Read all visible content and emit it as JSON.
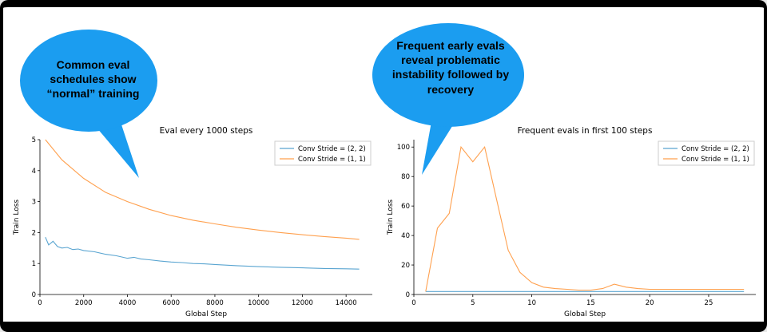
{
  "colors": {
    "bubble": "#1b9df0",
    "stride22_blue": "#5aa5d1",
    "stride11_orange": "#ffa04e",
    "legend_border": "#cccccc",
    "axis": "#000000"
  },
  "bubbles": {
    "left": {
      "text": "Common eval\nschedules show\n“normal” training"
    },
    "right": {
      "text": "Frequent early evals\nreveal problematic\ninstability followed by\nrecovery"
    }
  },
  "chart_data": [
    {
      "type": "line",
      "title": "Eval every 1000 steps",
      "xlabel": "Global Step",
      "ylabel": "Train Loss",
      "xlim": [
        0,
        15200
      ],
      "ylim": [
        0,
        5
      ],
      "xticks": [
        0,
        2000,
        4000,
        6000,
        8000,
        10000,
        12000,
        14000
      ],
      "yticks": [
        0,
        1,
        2,
        3,
        4,
        5
      ],
      "grid": false,
      "legend_position": "upper right",
      "series": [
        {
          "name": "Conv Stride =  (2, 2)",
          "color": "#5aa5d1",
          "x": [
            250,
            400,
            600,
            800,
            1000,
            1250,
            1500,
            1750,
            2000,
            2500,
            3000,
            3500,
            4000,
            4300,
            4600,
            5000,
            5500,
            6000,
            6500,
            7000,
            7500,
            8000,
            9000,
            10000,
            11000,
            12000,
            13000,
            14000,
            14600
          ],
          "y": [
            1.85,
            1.6,
            1.72,
            1.55,
            1.5,
            1.52,
            1.45,
            1.47,
            1.42,
            1.38,
            1.3,
            1.25,
            1.17,
            1.2,
            1.15,
            1.12,
            1.08,
            1.05,
            1.03,
            1.0,
            0.99,
            0.97,
            0.93,
            0.9,
            0.88,
            0.86,
            0.84,
            0.83,
            0.82
          ]
        },
        {
          "name": "Conv Stride =  (1, 1)",
          "color": "#ffa04e",
          "x": [
            250,
            1000,
            2000,
            3000,
            4000,
            5000,
            6000,
            7000,
            8000,
            9000,
            10000,
            11000,
            12000,
            13000,
            14000,
            14600
          ],
          "y": [
            5.0,
            4.35,
            3.75,
            3.3,
            3.0,
            2.75,
            2.55,
            2.4,
            2.28,
            2.17,
            2.08,
            2.0,
            1.93,
            1.87,
            1.82,
            1.78
          ]
        }
      ]
    },
    {
      "type": "line",
      "title": "Frequent evals in first 100 steps",
      "xlabel": "Global Step",
      "ylabel": "Train Loss",
      "xlim": [
        0,
        29
      ],
      "ylim": [
        0,
        105
      ],
      "xticks": [
        0,
        5,
        10,
        15,
        20,
        25
      ],
      "yticks": [
        0,
        20,
        40,
        60,
        80,
        100
      ],
      "grid": false,
      "legend_position": "upper right",
      "series": [
        {
          "name": "Conv Stride =  (2, 2)",
          "color": "#5aa5d1",
          "x": [
            1,
            5,
            10,
            15,
            20,
            25,
            28
          ],
          "y": [
            2,
            2,
            2,
            2,
            2,
            2,
            2
          ]
        },
        {
          "name": "Conv Stride =  (1, 1)",
          "color": "#ffa04e",
          "x": [
            1,
            2,
            3,
            4,
            5,
            6,
            7,
            8,
            9,
            10,
            11,
            12,
            13,
            14,
            15,
            16,
            17,
            18,
            19,
            20,
            21,
            22,
            23,
            24,
            25,
            26,
            27,
            28
          ],
          "y": [
            2,
            45,
            55,
            100,
            90,
            100,
            65,
            30,
            15,
            8,
            5,
            4,
            3.5,
            3,
            3,
            4,
            7,
            5,
            4,
            3.5,
            3.5,
            3.5,
            3.5,
            3.5,
            3.5,
            3.5,
            3.5,
            3.5
          ]
        }
      ]
    }
  ]
}
